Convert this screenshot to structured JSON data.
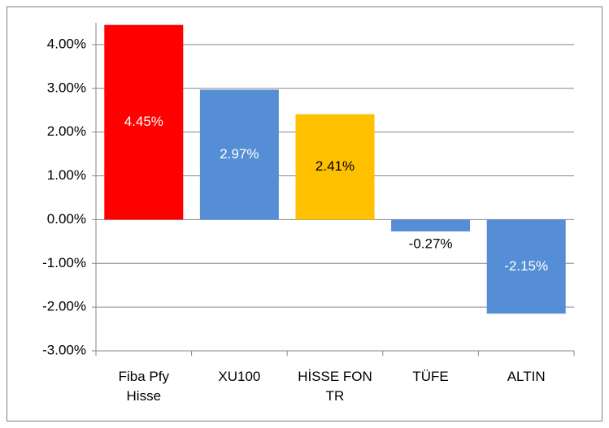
{
  "chart_data": {
    "type": "bar",
    "categories": [
      "Fiba Pfy Hisse",
      "XU100",
      "HİSSE FON TR",
      "TÜFE",
      "ALTIN"
    ],
    "values": [
      4.45,
      2.97,
      2.41,
      -0.27,
      -2.15
    ],
    "value_labels": [
      "4.45%",
      "2.97%",
      "2.41%",
      "-0.27%",
      "-2.15%"
    ],
    "colors": [
      "#ff0000",
      "#558ed5",
      "#ffc000",
      "#558ed5",
      "#558ed5"
    ],
    "value_label_colors": [
      "#ffffff",
      "#ffffff",
      "#000000",
      "#000000",
      "#ffffff"
    ],
    "ylim": [
      -3,
      4.5
    ],
    "yticks": [
      {
        "value": -3,
        "label": "-3.00%"
      },
      {
        "value": -2,
        "label": "-2.00%"
      },
      {
        "value": -1,
        "label": "-1.00%"
      },
      {
        "value": 0,
        "label": "0.00%"
      },
      {
        "value": 1,
        "label": "1.00%"
      },
      {
        "value": 2,
        "label": "2.00%"
      },
      {
        "value": 3,
        "label": "3.00%"
      },
      {
        "value": 4,
        "label": "4.00%"
      }
    ],
    "grid": true
  }
}
